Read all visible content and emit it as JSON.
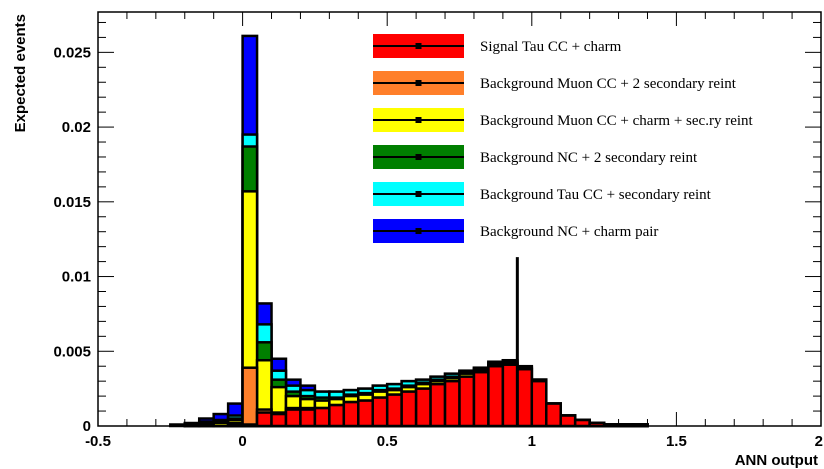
{
  "chart_data": {
    "type": "bar",
    "stacked": true,
    "histogram": true,
    "xlabel": "ANN output",
    "ylabel": "Expected events",
    "xlim": [
      -0.5,
      2
    ],
    "ylim": [
      0,
      0.0277
    ],
    "x_ticks": [
      -0.5,
      0,
      0.5,
      1,
      1.5,
      2
    ],
    "x_tick_labels": [
      "-0.5",
      "0",
      "0.5",
      "1",
      "1.5",
      "2"
    ],
    "y_ticks": [
      0,
      0.005,
      0.01,
      0.015,
      0.02,
      0.025
    ],
    "y_tick_labels": [
      "0",
      "0.005",
      "0.01",
      "0.015",
      "0.02",
      "0.025"
    ],
    "legend_position": "top-right",
    "marker_line": {
      "x": 0.95,
      "y_top": 0.0113
    },
    "bin_edges": [
      -0.4,
      -0.35,
      -0.3,
      -0.25,
      -0.2,
      -0.15,
      -0.1,
      -0.05,
      0,
      0.05,
      0.1,
      0.15,
      0.2,
      0.25,
      0.3,
      0.35,
      0.4,
      0.45,
      0.5,
      0.55,
      0.6,
      0.65,
      0.7,
      0.75,
      0.8,
      0.85,
      0.9,
      0.95,
      1.0,
      1.05,
      1.1,
      1.15,
      1.2,
      1.25,
      1.3,
      1.35,
      1.4,
      1.45,
      1.5,
      1.55,
      1.6
    ],
    "series": [
      {
        "name": "Signal Tau CC + charm",
        "color": "#ff0000",
        "values": [
          0,
          0,
          0,
          0,
          0,
          0,
          0,
          0.0001,
          0.0001,
          0.0009,
          0.0008,
          0.0011,
          0.0011,
          0.0012,
          0.0014,
          0.0016,
          0.0017,
          0.0019,
          0.0021,
          0.0023,
          0.0025,
          0.0028,
          0.003,
          0.0033,
          0.0036,
          0.004,
          0.0041,
          0.0038,
          0.003,
          0.0015,
          0.0007,
          0.0004,
          0.0002,
          0.0001,
          0.0001,
          0.0001,
          0,
          0,
          0,
          0
        ]
      },
      {
        "name": "Background Muon CC + 2 secondary reint",
        "color": "#ff7f2a",
        "values": [
          0,
          0,
          0,
          0,
          0,
          0,
          0,
          0.0001,
          0.0038,
          0.0002,
          0.0001,
          0.0001,
          0.0001,
          0,
          0,
          0,
          0,
          0,
          0,
          0,
          0,
          0,
          0,
          0,
          0,
          0,
          0,
          0,
          0,
          0,
          0,
          0,
          0,
          0,
          0,
          0,
          0,
          0,
          0,
          0
        ]
      },
      {
        "name": "Background Muon CC + charm + sec.ry reint",
        "color": "#ffff00",
        "values": [
          0,
          0,
          0,
          0,
          0.0001,
          0.0001,
          0.0002,
          0.0002,
          0.0118,
          0.0033,
          0.0017,
          0.0008,
          0.0006,
          0.0005,
          0.0004,
          0.0004,
          0.0004,
          0.0004,
          0.0003,
          0.0003,
          0.0003,
          0.0002,
          0.0002,
          0.0002,
          0.0001,
          0.0001,
          0.0001,
          0.0001,
          0.0001,
          0,
          0,
          0,
          0,
          0,
          0,
          0,
          0,
          0,
          0,
          0
        ]
      },
      {
        "name": "Background NC + 2 secondary reint",
        "color": "#007f00",
        "values": [
          0,
          0,
          0,
          0,
          0,
          0.0001,
          0.0001,
          0.0001,
          0.003,
          0.0012,
          0.0005,
          0.0003,
          0.0002,
          0.0002,
          0.0001,
          0.0001,
          0.0001,
          0.0001,
          0.0001,
          0.0001,
          0.0001,
          0.0001,
          0.0001,
          0.0001,
          0.0001,
          0.0001,
          0.0001,
          0,
          0,
          0,
          0,
          0,
          0,
          0,
          0,
          0,
          0,
          0,
          0,
          0
        ]
      },
      {
        "name": "Background Tau CC + secondary reint",
        "color": "#00ffff",
        "values": [
          0,
          0,
          0,
          0,
          0,
          0.0001,
          0.0001,
          0.0002,
          0.0008,
          0.0012,
          0.0006,
          0.0004,
          0.0004,
          0.0004,
          0.0004,
          0.0003,
          0.0003,
          0.0003,
          0.0003,
          0.0003,
          0.0002,
          0.0002,
          0.0002,
          0.0001,
          0.0001,
          0.0001,
          0.0001,
          0.0001,
          0,
          0,
          0,
          0,
          0,
          0,
          0,
          0,
          0,
          0,
          0,
          0
        ]
      },
      {
        "name": "Background NC + charm pair",
        "color": "#0000ff",
        "values": [
          0,
          0,
          0,
          0.0001,
          0.0001,
          0.0002,
          0.0004,
          0.0008,
          0.0066,
          0.0014,
          0.0008,
          0.0004,
          0.0003,
          0,
          0,
          0,
          0,
          0,
          0,
          0,
          0,
          0,
          0,
          0,
          0,
          0,
          0,
          0,
          0,
          0,
          0,
          0,
          0,
          0,
          0,
          0,
          0,
          0,
          0,
          0
        ]
      }
    ]
  }
}
